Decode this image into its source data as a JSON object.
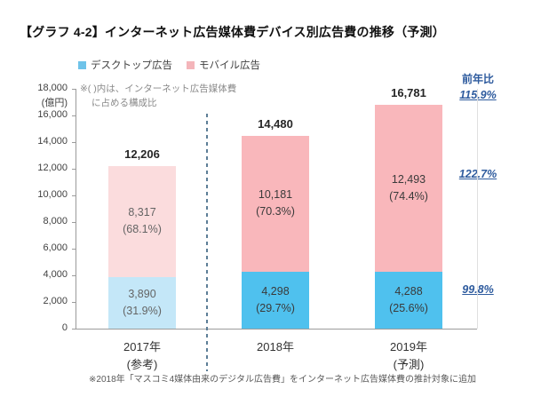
{
  "title": "【グラフ 4-2】インターネット広告媒体費デバイス別広告費の推移（予測）",
  "legend": [
    {
      "name": "desktop",
      "label": "デスクトップ広告",
      "color": "#6fc3e9"
    },
    {
      "name": "mobile",
      "label": "モバイル広告",
      "color": "#f4b5ba"
    }
  ],
  "note": {
    "line1": "※( )内は、インターネット広告媒体費",
    "line2": "に占める構成比"
  },
  "footnote": "※2018年「マスコミ4媒体由来のデジタル広告費」をインターネット広告媒体費の推計対象に追加",
  "colors": {
    "desktop": "#4fc1ee",
    "desktop_muted": "#c4e7f8",
    "mobile": "#f9b7bb",
    "mobile_muted": "#fbdcdd",
    "yoy_text": "#2e5b9e",
    "axis": "#9b9b9b"
  },
  "chart_data": {
    "type": "bar",
    "subtype": "stacked",
    "title": "インターネット広告媒体費デバイス別広告費の推移（予測）",
    "ylabel": "(億円)",
    "ylim": [
      0,
      18000
    ],
    "ytick_step": 2000,
    "ytick_labels": [
      "0",
      "2,000",
      "4,000",
      "6,000",
      "8,000",
      "10,000",
      "12,000",
      "14,000",
      "16,000",
      "18,000"
    ],
    "categories": [
      "2017年",
      "2018年",
      "2019年"
    ],
    "category_subs": [
      "(参考)",
      "",
      "(予測)"
    ],
    "series": [
      {
        "name": "デスクトップ広告",
        "values": [
          3890,
          4298,
          4288
        ],
        "value_labels": [
          "3,890",
          "4,298",
          "4,288"
        ],
        "pct_labels": [
          "(31.9%)",
          "(29.7%)",
          "(25.6%)"
        ]
      },
      {
        "name": "モバイル広告",
        "values": [
          8317,
          10181,
          12493
        ],
        "value_labels": [
          "8,317",
          "10,181",
          "12,493"
        ],
        "pct_labels": [
          "(68.1%)",
          "(70.3%)",
          "(74.4%)"
        ]
      }
    ],
    "totals": [
      12206,
      14480,
      16781
    ],
    "total_labels": [
      "12,206",
      "14,480",
      "16,781"
    ],
    "yoy": {
      "header": "前年比",
      "total": "115.9%",
      "mobile": "122.7%",
      "desktop": "99.8%"
    },
    "legend_position": "top-left",
    "grid": false
  }
}
